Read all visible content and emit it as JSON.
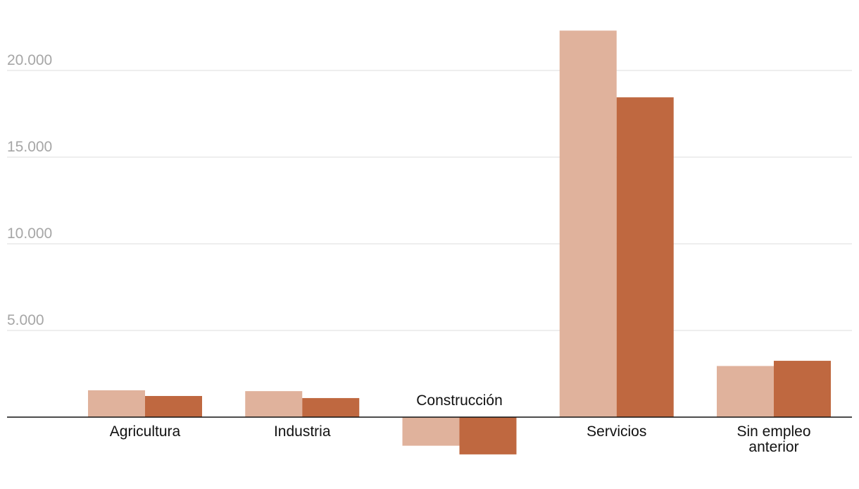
{
  "chart_data": {
    "type": "bar",
    "title": "",
    "xlabel": "",
    "ylabel": "",
    "categories": [
      [
        "Agricultura"
      ],
      [
        "Industria"
      ],
      [
        "Construcción"
      ],
      [
        "Servicios"
      ],
      [
        "Sin empleo",
        "anterior"
      ]
    ],
    "series": [
      {
        "name": "",
        "color": "#e0b29c",
        "values": [
          1550,
          1500,
          -1650,
          22300,
          2950
        ]
      },
      {
        "name": "",
        "color": "#bf6840",
        "values": [
          1220,
          1100,
          -2150,
          18450,
          3250
        ]
      }
    ],
    "y_ticks": [
      5000,
      10000,
      15000,
      20000
    ],
    "y_tick_labels": [
      "5.000",
      "10.000",
      "15.000",
      "20.000"
    ],
    "ylim": [
      -3000,
      24000
    ],
    "grid": true,
    "legend": "none"
  }
}
